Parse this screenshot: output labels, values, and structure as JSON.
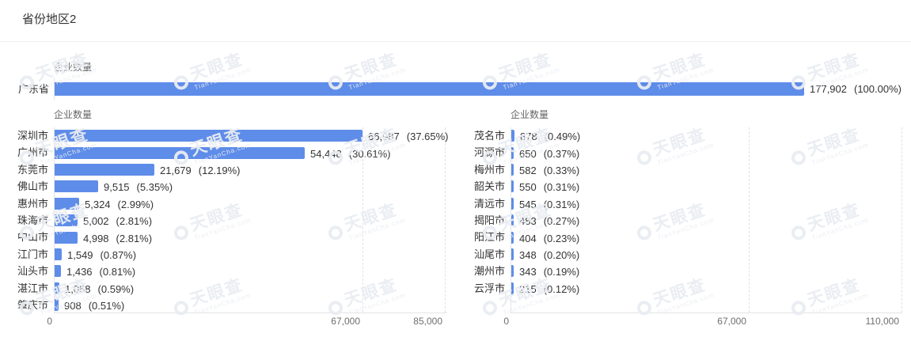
{
  "page": {
    "title": "省份地区2"
  },
  "colors": {
    "bar": "#5e8ce9",
    "label": "#333333",
    "axis_text": "#6e6e6e",
    "axis_line": "#e5e5e5"
  },
  "watermark": {
    "brand": "天眼查",
    "domain": "TianYanCha.com"
  },
  "chart_data": [
    {
      "type": "bar",
      "orientation": "horizontal",
      "title": "企业数量",
      "categories": [
        "广东省"
      ],
      "values": [
        177902
      ],
      "value_labels": [
        "177,902"
      ],
      "pct_labels": [
        "(100.00%)"
      ],
      "xlim": [
        0,
        177902
      ],
      "xticks": [],
      "grid": false,
      "legend": "none"
    },
    {
      "type": "bar",
      "orientation": "horizontal",
      "title": "企业数量",
      "categories": [
        "深圳市",
        "广州市",
        "东莞市",
        "佛山市",
        "惠州市",
        "珠海市",
        "中山市",
        "江门市",
        "汕头市",
        "湛江市",
        "肇庆市"
      ],
      "values": [
        66987,
        54448,
        21679,
        9515,
        5324,
        5002,
        4998,
        1549,
        1436,
        1058,
        908
      ],
      "value_labels": [
        "66,987",
        "54,448",
        "21,679",
        "9,515",
        "5,324",
        "5,002",
        "4,998",
        "1,549",
        "1,436",
        "1,058",
        "908"
      ],
      "pct_labels": [
        "(37.65%)",
        "(30.61%)",
        "(12.19%)",
        "(5.35%)",
        "(2.99%)",
        "(2.81%)",
        "(2.81%)",
        "(0.87%)",
        "(0.81%)",
        "(0.59%)",
        "(0.51%)"
      ],
      "xlim": [
        0,
        85000
      ],
      "xticks": [
        {
          "value": 0,
          "label": "0"
        },
        {
          "value": 67000,
          "label": "67,000"
        },
        {
          "value": 85000,
          "label": "85,000"
        }
      ],
      "grid": true,
      "legend": "none"
    },
    {
      "type": "bar",
      "orientation": "horizontal",
      "title": "企业数量",
      "categories": [
        "茂名市",
        "河源市",
        "梅州市",
        "韶关市",
        "清远市",
        "揭阳市",
        "阳江市",
        "汕尾市",
        "潮州市",
        "云浮市"
      ],
      "values": [
        878,
        650,
        582,
        550,
        545,
        483,
        404,
        348,
        343,
        215
      ],
      "value_labels": [
        "878",
        "650",
        "582",
        "550",
        "545",
        "483",
        "404",
        "348",
        "343",
        "215"
      ],
      "pct_labels": [
        "(0.49%)",
        "(0.37%)",
        "(0.33%)",
        "(0.31%)",
        "(0.31%)",
        "(0.27%)",
        "(0.23%)",
        "(0.20%)",
        "(0.19%)",
        "(0.12%)"
      ],
      "xlim": [
        0,
        110000
      ],
      "xticks": [
        {
          "value": 0,
          "label": "0"
        },
        {
          "value": 67000,
          "label": "67,000"
        },
        {
          "value": 110000,
          "label": "110,000"
        }
      ],
      "grid": true,
      "legend": "none"
    }
  ]
}
